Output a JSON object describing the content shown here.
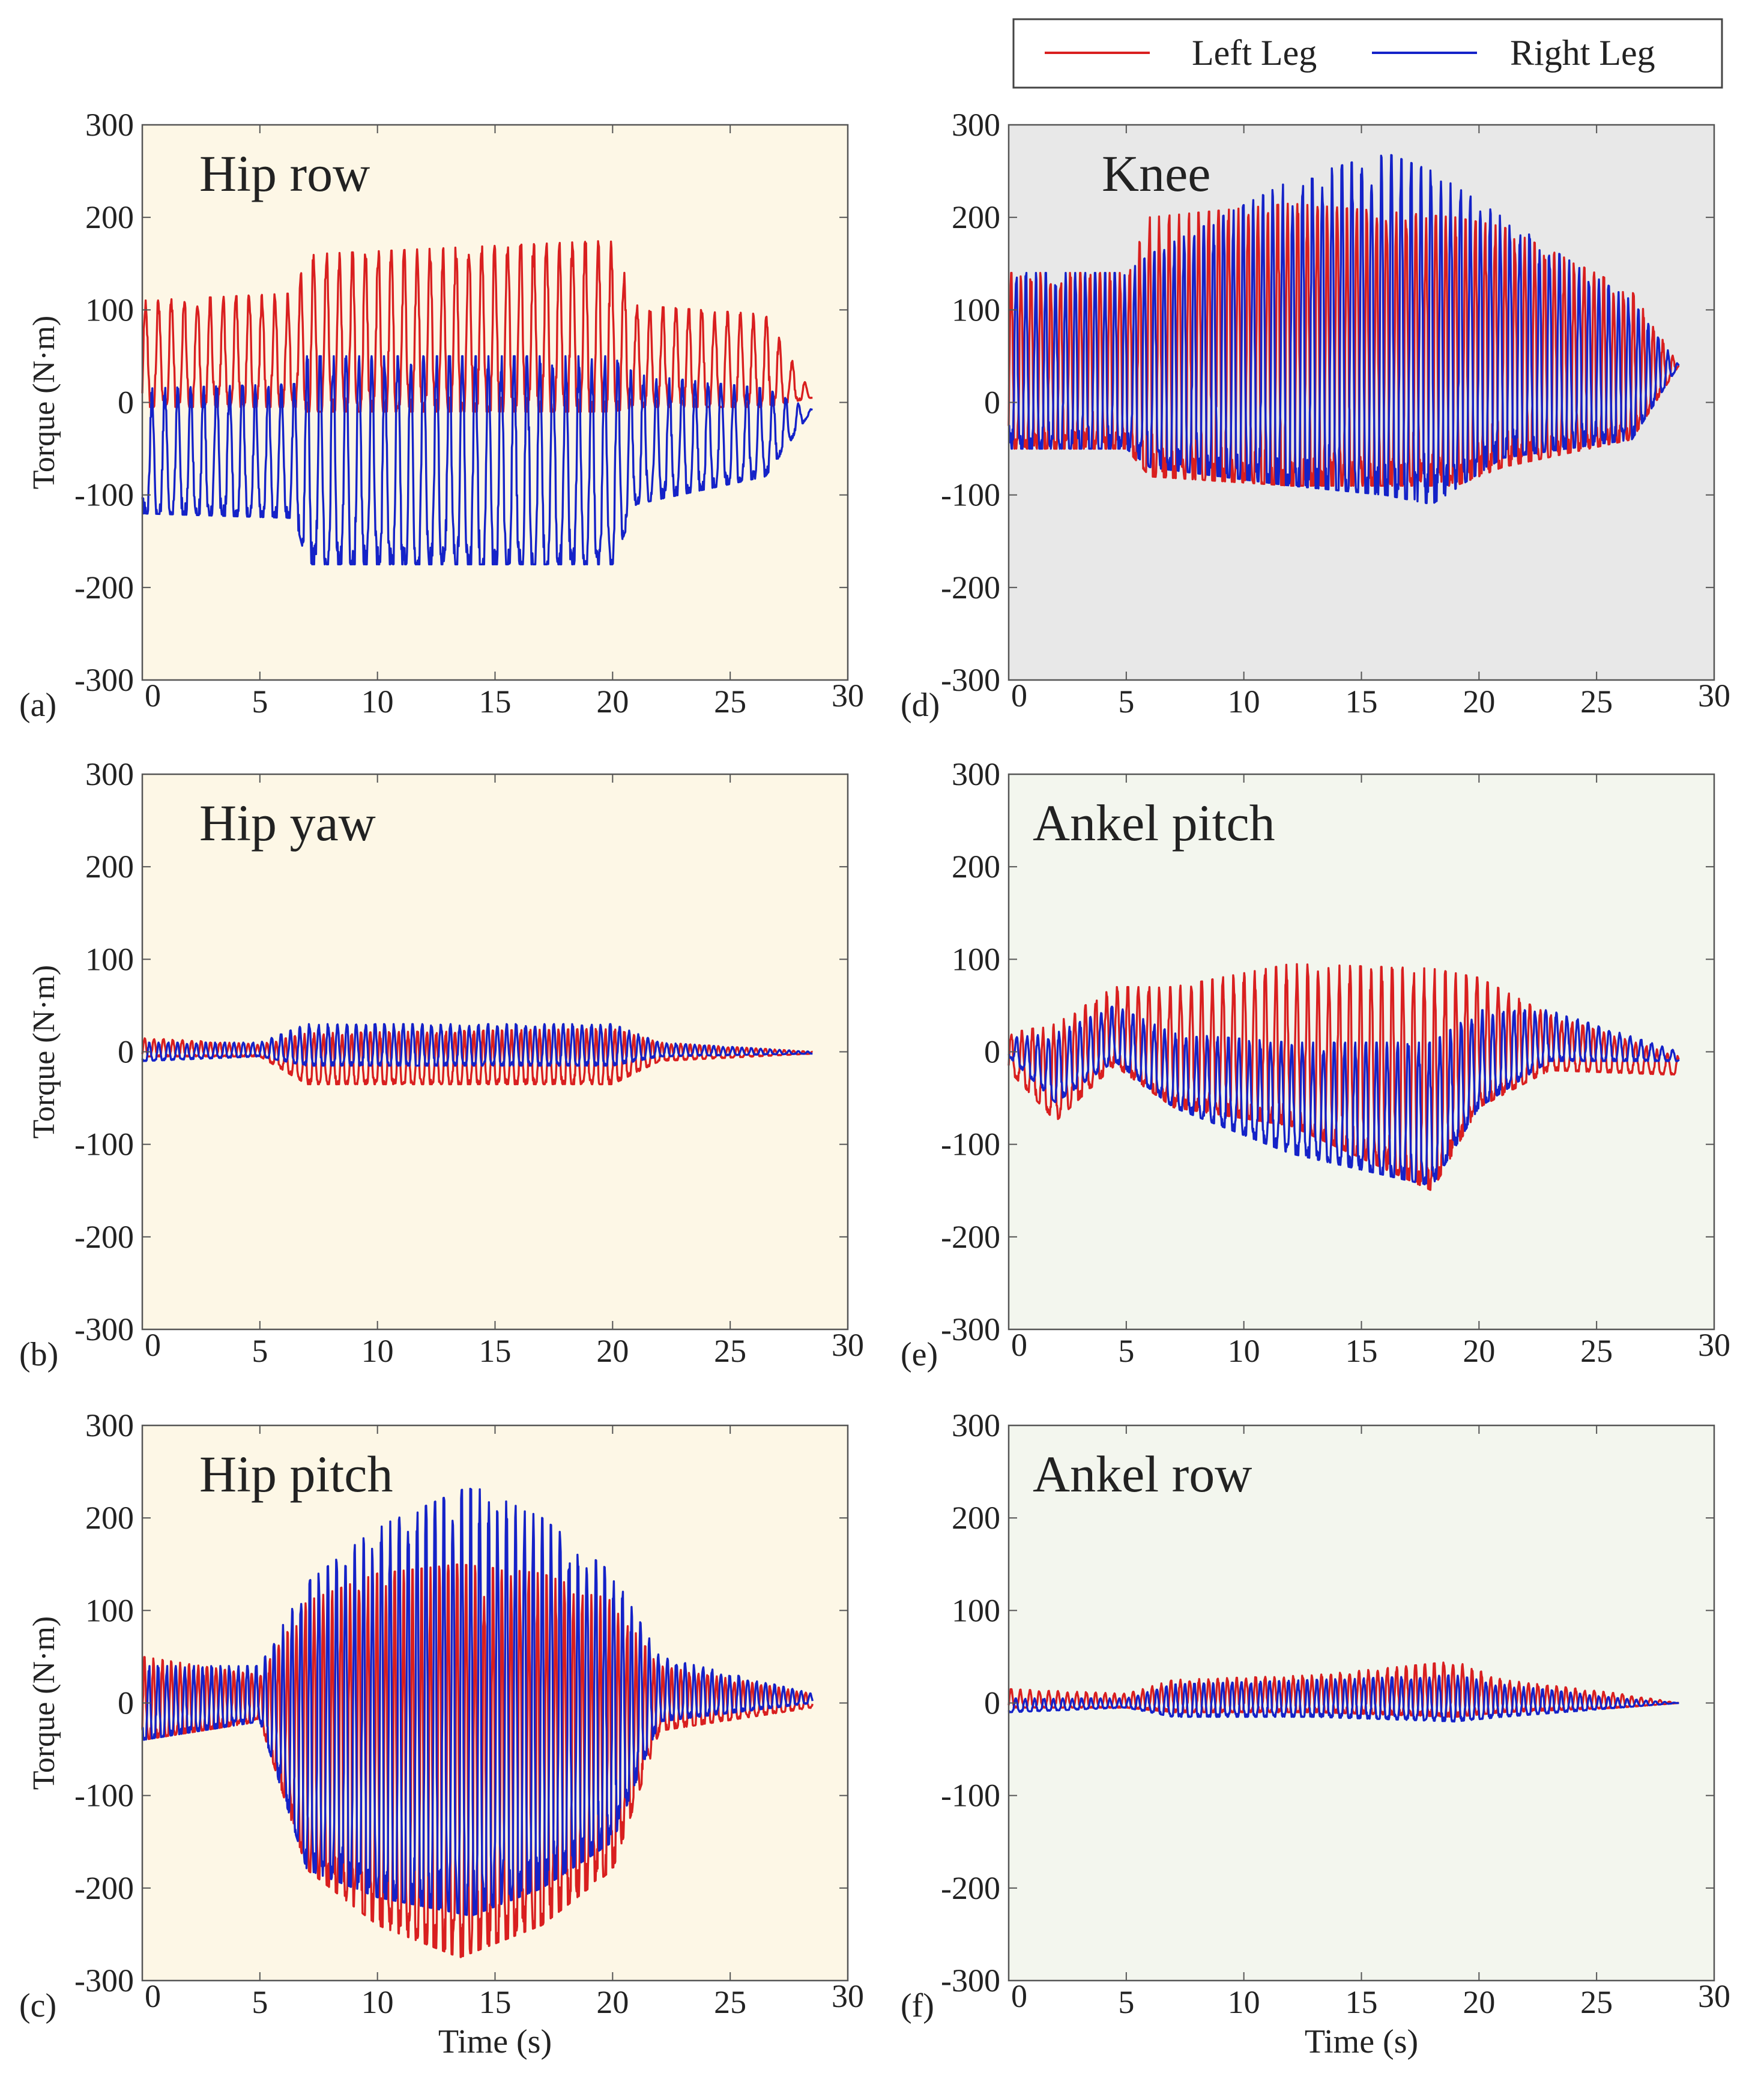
{
  "figure": {
    "legend": {
      "entries": [
        "Left Leg",
        "Right Leg"
      ],
      "placement": "top-right"
    }
  },
  "colors": {
    "left": "#d91f1f",
    "right": "#1422c8",
    "panel_cream": "#fdf7e6",
    "panel_gray": "#e8e8e8",
    "panel_green": "#f3f6ee"
  },
  "chart_data": [
    {
      "type": "line",
      "panel_label": "(a)",
      "title": "Hip row",
      "xlabel": "",
      "ylabel": "Torque (N·m)",
      "xlim": [
        0,
        30
      ],
      "ylim": [
        -300,
        300
      ],
      "xticks": [
        "0",
        "5",
        "10",
        "15",
        "20",
        "25",
        "30"
      ],
      "yticks": [
        "300",
        "200",
        "100",
        "0",
        "-100",
        "-200",
        "-300"
      ],
      "background": "#fdf7e6",
      "series": [
        {
          "name": "Left Leg",
          "color": "#d91f1f",
          "end": 28.5,
          "envelope": {
            "t": [
              0,
              6.5,
              7,
              20,
              21,
              26.5,
              28.5
            ],
            "max": [
              110,
              118,
              160,
              175,
              105,
              95,
              8
            ],
            "min": [
              -5,
              -5,
              -10,
              -10,
              -5,
              -5,
              5
            ]
          },
          "period": 0.55
        },
        {
          "name": "Right Leg",
          "color": "#1422c8",
          "end": 28.5,
          "envelope": {
            "t": [
              0,
              6.5,
              7,
              20,
              21,
              26.5,
              28.5
            ],
            "max": [
              15,
              20,
              50,
              50,
              30,
              15,
              -8
            ],
            "min": [
              -120,
              -125,
              -175,
              -175,
              -110,
              -80,
              -8
            ]
          },
          "period": 0.55
        }
      ]
    },
    {
      "type": "line",
      "panel_label": "(b)",
      "title": "Hip yaw",
      "xlabel": "",
      "ylabel": "Torque (N·m)",
      "xlim": [
        0,
        30
      ],
      "ylim": [
        -300,
        300
      ],
      "xticks": [
        "0",
        "5",
        "10",
        "15",
        "20",
        "25",
        "30"
      ],
      "yticks": [
        "300",
        "200",
        "100",
        "0",
        "-100",
        "-200",
        "-300"
      ],
      "background": "#fdf7e6",
      "series": [
        {
          "name": "Left Leg",
          "color": "#d91f1f",
          "end": 28.5,
          "envelope": {
            "t": [
              0,
              5,
              7,
              20,
              22,
              28.5
            ],
            "max": [
              15,
              8,
              20,
              25,
              10,
              0
            ],
            "min": [
              -5,
              -5,
              -35,
              -35,
              -10,
              -2
            ]
          },
          "period": 0.4
        },
        {
          "name": "Right Leg",
          "color": "#1422c8",
          "end": 28.5,
          "envelope": {
            "t": [
              0,
              5,
              7,
              20,
              22,
              28.5
            ],
            "max": [
              10,
              10,
              30,
              30,
              10,
              0
            ],
            "min": [
              -10,
              -5,
              -15,
              -15,
              -5,
              -2
            ]
          },
          "period": 0.4
        }
      ]
    },
    {
      "type": "line",
      "panel_label": "(c)",
      "title": "Hip pitch",
      "xlabel": "Time (s)",
      "ylabel": "Torque (N·m)",
      "xlim": [
        0,
        30
      ],
      "ylim": [
        -300,
        300
      ],
      "xticks": [
        "0",
        "5",
        "10",
        "15",
        "20",
        "25",
        "30"
      ],
      "yticks": [
        "300",
        "200",
        "100",
        "0",
        "-100",
        "-200",
        "-300"
      ],
      "background": "#fdf7e6",
      "series": [
        {
          "name": "Left Leg",
          "color": "#d91f1f",
          "end": 28.5,
          "envelope": {
            "t": [
              0,
              5,
              7,
              10,
              13.5,
              17,
              20,
              22,
              28.5
            ],
            "max": [
              50,
              30,
              110,
              140,
              150,
              140,
              110,
              40,
              10
            ],
            "min": [
              -40,
              -20,
              -180,
              -240,
              -275,
              -240,
              -180,
              -30,
              -5
            ]
          },
          "period": 0.38
        },
        {
          "name": "Right Leg",
          "color": "#1422c8",
          "end": 28.5,
          "envelope": {
            "t": [
              0,
              5,
              7,
              10,
              14,
              17,
              20,
              22,
              28.5
            ],
            "max": [
              40,
              40,
              130,
              190,
              235,
              200,
              140,
              50,
              10
            ],
            "min": [
              -40,
              -20,
              -180,
              -210,
              -230,
              -200,
              -150,
              -20,
              0
            ]
          },
          "period": 0.38
        }
      ]
    },
    {
      "type": "line",
      "panel_label": "(d)",
      "title": "Knee",
      "xlabel": "",
      "ylabel": "",
      "xlim": [
        0,
        30
      ],
      "ylim": [
        -300,
        300
      ],
      "xticks": [
        "0",
        "5",
        "10",
        "15",
        "20",
        "25",
        "30"
      ],
      "yticks": [
        "300",
        "200",
        "100",
        "0",
        "-100",
        "-200",
        "-300"
      ],
      "background": "#e8e8e8",
      "series": [
        {
          "name": "Left Leg",
          "color": "#d91f1f",
          "end": 28.5,
          "envelope": {
            "t": [
              0,
              5,
              6,
              12,
              19,
              21,
              26.5,
              28.5
            ],
            "max": [
              140,
              140,
              200,
              215,
              200,
              190,
              120,
              40
            ],
            "min": [
              -50,
              -50,
              -80,
              -90,
              -90,
              -70,
              -40,
              40
            ]
          },
          "period": 0.42
        },
        {
          "name": "Right Leg",
          "color": "#1422c8",
          "end": 28.5,
          "envelope": {
            "t": [
              0,
              5,
              6,
              12,
              16,
              18,
              21,
              26.5,
              28.5
            ],
            "max": [
              140,
              140,
              160,
              240,
              270,
              250,
              200,
              110,
              40
            ],
            "min": [
              -50,
              -50,
              -70,
              -90,
              -100,
              -110,
              -60,
              -40,
              40
            ]
          },
          "period": 0.42
        }
      ]
    },
    {
      "type": "line",
      "panel_label": "(e)",
      "title": "Ankel pitch",
      "xlabel": "",
      "ylabel": "",
      "xlim": [
        0,
        30
      ],
      "ylim": [
        -300,
        300
      ],
      "xticks": [
        "0",
        "5",
        "10",
        "15",
        "20",
        "25",
        "30"
      ],
      "yticks": [
        "300",
        "200",
        "100",
        "0",
        "-100",
        "-200",
        "-300"
      ],
      "background": "#f3f6ee",
      "series": [
        {
          "name": "Left Leg",
          "color": "#d91f1f",
          "end": 28.5,
          "envelope": {
            "t": [
              0,
              2,
              4.5,
              7,
              12,
              18,
              20,
              23,
              28.5
            ],
            "max": [
              20,
              30,
              70,
              70,
              95,
              90,
              80,
              40,
              -5
            ],
            "min": [
              -20,
              -75,
              -15,
              -60,
              -80,
              -150,
              -60,
              -20,
              -25
            ]
          },
          "period": 0.45
        },
        {
          "name": "Right Leg",
          "color": "#1422c8",
          "end": 28.5,
          "envelope": {
            "t": [
              0,
              2,
              4.5,
              7,
              12,
              18,
              20,
              23,
              28.5
            ],
            "max": [
              15,
              20,
              50,
              20,
              10,
              10,
              45,
              45,
              0
            ],
            "min": [
              -5,
              -55,
              -10,
              -60,
              -110,
              -145,
              -60,
              -10,
              -10
            ]
          },
          "period": 0.45
        }
      ]
    },
    {
      "type": "line",
      "panel_label": "(f)",
      "title": "Ankel row",
      "xlabel": "Time (s)",
      "ylabel": "",
      "xlim": [
        0,
        30
      ],
      "ylim": [
        -300,
        300
      ],
      "xticks": [
        "0",
        "5",
        "10",
        "15",
        "20",
        "25",
        "30"
      ],
      "yticks": [
        "300",
        "200",
        "100",
        "0",
        "-100",
        "-200",
        "-300"
      ],
      "background": "#f3f6ee",
      "series": [
        {
          "name": "Left Leg",
          "color": "#d91f1f",
          "end": 28.5,
          "envelope": {
            "t": [
              0,
              5,
              7,
              13,
              19,
              21,
              26,
              28.5
            ],
            "max": [
              15,
              10,
              25,
              30,
              45,
              25,
              10,
              0
            ],
            "min": [
              -5,
              -5,
              -10,
              -10,
              -15,
              -10,
              -5,
              0
            ]
          },
          "period": 0.4
        },
        {
          "name": "Right Leg",
          "color": "#1422c8",
          "end": 28.5,
          "envelope": {
            "t": [
              0,
              5,
              7,
              13,
              19,
              21,
              26,
              28.5
            ],
            "max": [
              5,
              5,
              20,
              25,
              30,
              20,
              5,
              0
            ],
            "min": [
              -10,
              -5,
              -15,
              -15,
              -20,
              -15,
              -5,
              0
            ]
          },
          "period": 0.4
        }
      ]
    }
  ]
}
